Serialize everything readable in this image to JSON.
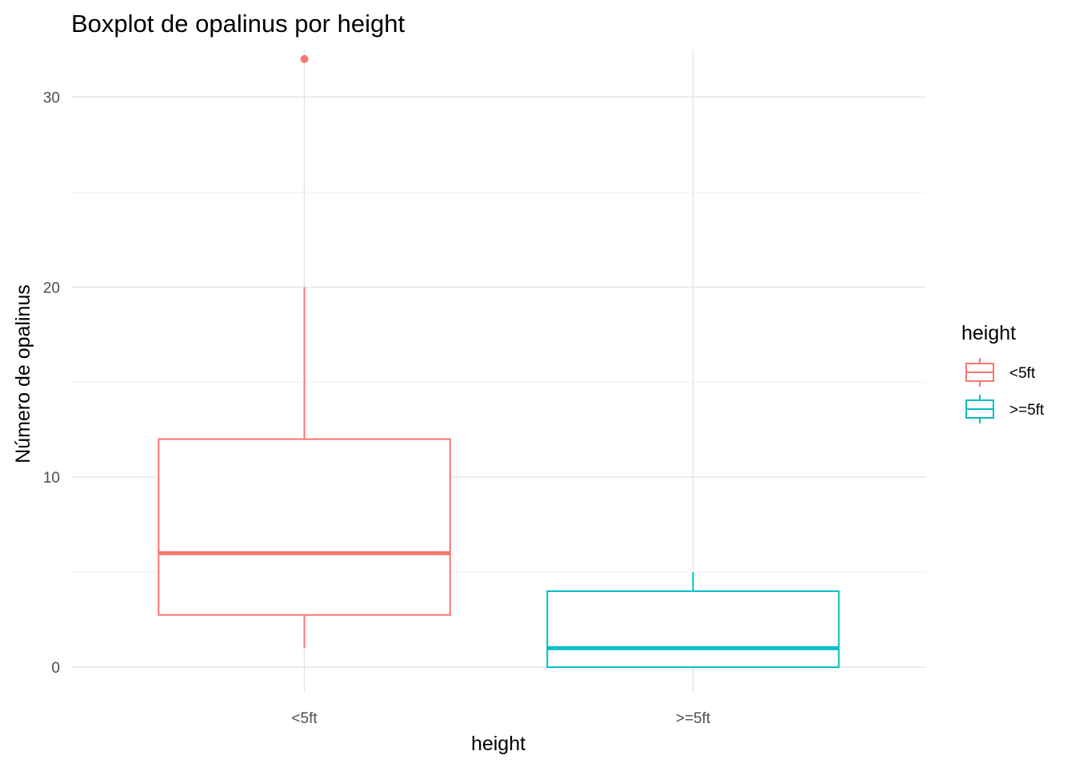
{
  "chart_data": {
    "type": "boxplot",
    "title": "Boxplot de opalinus por height",
    "xlabel": "height",
    "ylabel": "Número de opalinus",
    "categories": [
      "<5ft",
      ">=5ft"
    ],
    "ylim": [
      -1.3,
      32.5
    ],
    "yticks": [
      0,
      10,
      20,
      30
    ],
    "grid": true,
    "legend": {
      "title": "height",
      "position": "right",
      "entries": [
        {
          "label": "<5ft",
          "color": "#F8766D"
        },
        {
          "label": ">=5ft",
          "color": "#00BFC4"
        }
      ]
    },
    "series": [
      {
        "category": "<5ft",
        "color": "#F8766D",
        "min": 1,
        "q1": 2.75,
        "median": 6,
        "q3": 12,
        "max": 20,
        "outliers": [
          32
        ]
      },
      {
        "category": ">=5ft",
        "color": "#00BFC4",
        "min": 0,
        "q1": 0,
        "median": 1,
        "q3": 4,
        "max": 5,
        "outliers": []
      }
    ]
  }
}
